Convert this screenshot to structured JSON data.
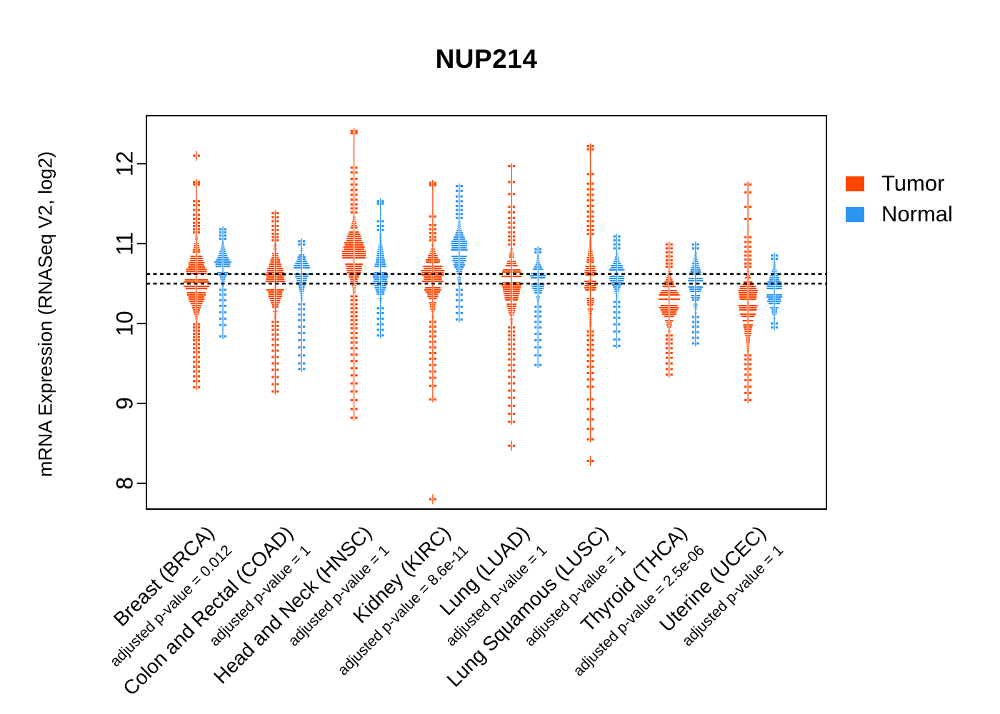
{
  "chart_data": {
    "type": "violin",
    "title": "NUP214",
    "ylabel": "mRNA Expression (RNASeq V2, log2)",
    "xlabel": "",
    "yticks": [
      8,
      9,
      10,
      11,
      12
    ],
    "ylim": [
      7.68,
      12.6
    ],
    "grid": false,
    "reference_lines": [
      10.62,
      10.5
    ],
    "legend_position": "right",
    "legend": [
      {
        "label": "Tumor",
        "color": "#FF4500"
      },
      {
        "label": "Normal",
        "color": "#2B95F5"
      }
    ],
    "groups": [
      {
        "label": "Breast (BRCA)",
        "p_label": "adjusted p-value = 0.012",
        "series": [
          {
            "name": "Tumor",
            "median": 10.6,
            "body": [
              10.05,
              11.1
            ],
            "peak": 10.5,
            "width": 1.0,
            "upper": [
              11.14,
              11.18,
              11.22,
              11.26,
              11.31,
              11.36,
              11.42,
              11.48,
              11.53,
              11.74,
              11.77,
              12.1
            ],
            "lower": [
              9.99,
              9.95,
              9.91,
              9.87,
              9.83,
              9.79,
              9.74,
              9.69,
              9.64,
              9.58,
              9.52,
              9.46,
              9.4,
              9.34,
              9.28,
              9.2
            ]
          },
          {
            "name": "Normal",
            "median": 10.68,
            "body": [
              10.48,
              11.02
            ],
            "peak": 10.75,
            "width": 0.65,
            "upper": [
              11.06,
              11.1,
              11.14,
              11.18
            ],
            "lower": [
              10.42,
              10.36,
              10.29,
              10.22,
              10.14,
              10.06,
              9.98,
              9.84
            ]
          }
        ]
      },
      {
        "label": "Colon and Rectal (COAD)",
        "p_label": "adjusted p-value = 1",
        "series": [
          {
            "name": "Tumor",
            "median": 10.5,
            "body": [
              10.08,
              11.0
            ],
            "peak": 10.55,
            "width": 0.85,
            "upper": [
              11.04,
              11.08,
              11.12,
              11.17,
              11.22,
              11.28,
              11.33,
              11.38
            ],
            "lower": [
              10.02,
              9.97,
              9.92,
              9.86,
              9.8,
              9.73,
              9.66,
              9.58,
              9.5,
              9.42,
              9.33,
              9.24,
              9.15
            ]
          },
          {
            "name": "Normal",
            "median": 10.66,
            "body": [
              10.3,
              10.95
            ],
            "peak": 10.7,
            "width": 0.65,
            "upper": [
              10.99,
              11.03
            ],
            "lower": [
              10.24,
              10.18,
              10.11,
              10.04,
              9.96,
              9.88,
              9.79,
              9.7,
              9.6,
              9.5,
              9.43
            ]
          }
        ]
      },
      {
        "label": "Head and Neck (HNSC)",
        "p_label": "adjusted p-value = 1",
        "series": [
          {
            "name": "Tumor",
            "median": 10.8,
            "body": [
              10.4,
              11.35
            ],
            "peak": 10.88,
            "width": 0.95,
            "upper": [
              11.39,
              11.44,
              11.49,
              11.55,
              11.61,
              11.67,
              11.74,
              11.81,
              11.89,
              11.95,
              12.38,
              12.41
            ],
            "lower": [
              10.34,
              10.29,
              10.24,
              10.19,
              10.14,
              10.09,
              10.04,
              9.99,
              9.94,
              9.88,
              9.82,
              9.76,
              9.69,
              9.61,
              9.53,
              9.44,
              9.35,
              9.25,
              9.15,
              9.04,
              8.93,
              8.82
            ]
          },
          {
            "name": "Normal",
            "median": 10.68,
            "body": [
              10.25,
              11.13
            ],
            "peak": 10.55,
            "width": 0.65,
            "upper": [
              11.17,
              11.22,
              11.28,
              11.5,
              11.53
            ],
            "lower": [
              10.19,
              10.13,
              10.06,
              9.99,
              9.92,
              9.85
            ]
          }
        ]
      },
      {
        "label": "Kidney (KIRC)",
        "p_label": "adjusted p-value = 8.6e-11",
        "series": [
          {
            "name": "Tumor",
            "median": 10.5,
            "body": [
              10.08,
              11.0
            ],
            "peak": 10.65,
            "width": 0.9,
            "upper": [
              11.04,
              11.08,
              11.13,
              11.18,
              11.23,
              11.34,
              11.73,
              11.76
            ],
            "lower": [
              10.02,
              9.96,
              9.9,
              9.84,
              9.77,
              9.7,
              9.63,
              9.56,
              9.48,
              9.4,
              9.32,
              9.22,
              9.05,
              7.8
            ]
          },
          {
            "name": "Normal",
            "median": 10.88,
            "body": [
              10.48,
              11.28
            ],
            "peak": 10.95,
            "width": 0.7,
            "upper": [
              11.32,
              11.37,
              11.42,
              11.47,
              11.53,
              11.59,
              11.66,
              11.72
            ],
            "lower": [
              10.42,
              10.36,
              10.29,
              10.21,
              10.13,
              10.05
            ]
          }
        ]
      },
      {
        "label": "Lung (LUAD)",
        "p_label": "adjusted p-value = 1",
        "series": [
          {
            "name": "Tumor",
            "median": 10.57,
            "body": [
              10.0,
              10.95
            ],
            "peak": 10.55,
            "width": 0.85,
            "upper": [
              10.99,
              11.04,
              11.09,
              11.14,
              11.2,
              11.26,
              11.32,
              11.39,
              11.46,
              11.62,
              11.77,
              11.97
            ],
            "lower": [
              9.95,
              9.9,
              9.85,
              9.8,
              9.74,
              9.68,
              9.62,
              9.55,
              9.48,
              9.41,
              9.33,
              9.25,
              9.16,
              9.07,
              8.97,
              8.87,
              8.77,
              8.47
            ]
          },
          {
            "name": "Normal",
            "median": 10.55,
            "body": [
              10.27,
              10.85
            ],
            "peak": 10.55,
            "width": 0.65,
            "upper": [
              10.89,
              10.93
            ],
            "lower": [
              10.21,
              10.15,
              10.09,
              10.02,
              9.95,
              9.87,
              9.79,
              9.7,
              9.6,
              9.48
            ]
          }
        ]
      },
      {
        "label": "Lung Squamous (LUSC)",
        "p_label": "adjusted p-value = 1",
        "series": [
          {
            "name": "Tumor",
            "median": 10.58,
            "body": [
              9.95,
              11.08
            ],
            "peak": 10.58,
            "width": 0.5,
            "upper": [
              11.12,
              11.17,
              11.22,
              11.28,
              11.34,
              11.4,
              11.47,
              11.54,
              11.61,
              11.68,
              11.75,
              11.87,
              12.18,
              12.22
            ],
            "lower": [
              9.9,
              9.85,
              9.79,
              9.73,
              9.67,
              9.6,
              9.53,
              9.46,
              9.38,
              9.3,
              9.21,
              9.05,
              8.93,
              8.8,
              8.68,
              8.55,
              8.28
            ]
          },
          {
            "name": "Normal",
            "median": 10.64,
            "body": [
              10.33,
              10.9
            ],
            "peak": 10.63,
            "width": 0.65,
            "upper": [
              10.94,
              10.99,
              11.04,
              11.09
            ],
            "lower": [
              10.27,
              10.21,
              10.14,
              10.07,
              9.99,
              9.9,
              9.8,
              9.72
            ]
          }
        ]
      },
      {
        "label": "Thyroid (THCA)",
        "p_label": "adjusted p-value = 2.5e-06",
        "series": [
          {
            "name": "Tumor",
            "median": 10.27,
            "body": [
              9.9,
              10.67
            ],
            "peak": 10.3,
            "width": 0.85,
            "upper": [
              10.71,
              10.75,
              10.79,
              10.84,
              10.89,
              10.94,
              10.99
            ],
            "lower": [
              9.85,
              9.8,
              9.75,
              9.69,
              9.63,
              9.57,
              9.5,
              9.43,
              9.36
            ]
          },
          {
            "name": "Normal",
            "median": 10.5,
            "body": [
              10.13,
              10.9
            ],
            "peak": 10.53,
            "width": 0.65,
            "upper": [
              10.94,
              10.99
            ],
            "lower": [
              10.08,
              10.02,
              9.96,
              9.89,
              9.82,
              9.75
            ]
          }
        ]
      },
      {
        "label": "Uterine (UCEC)",
        "p_label": "adjusted p-value = 1",
        "series": [
          {
            "name": "Tumor",
            "median": 10.28,
            "body": [
              9.65,
              10.67
            ],
            "peak": 10.38,
            "width": 0.8,
            "upper": [
              10.71,
              10.75,
              10.8,
              10.85,
              10.9,
              10.96,
              11.02,
              11.08,
              11.31,
              11.46,
              11.64,
              11.74
            ],
            "lower": [
              9.6,
              9.55,
              9.49,
              9.43,
              9.36,
              9.29,
              9.21,
              9.13,
              9.04
            ]
          },
          {
            "name": "Normal",
            "median": 10.4,
            "body": [
              10.05,
              10.77
            ],
            "peak": 10.4,
            "width": 0.7,
            "upper": [
              10.81,
              10.85
            ],
            "lower": [
              10.0,
              9.95
            ]
          }
        ]
      }
    ]
  }
}
